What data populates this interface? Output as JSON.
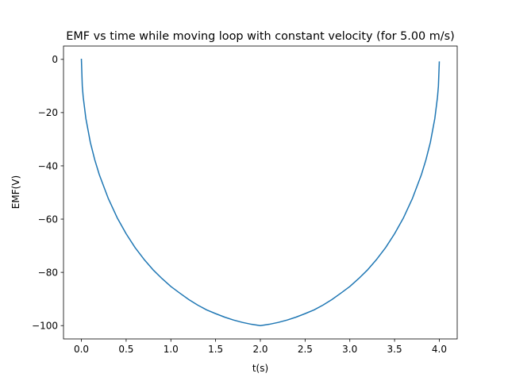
{
  "chart_data": {
    "type": "line",
    "title": "EMF vs time while moving loop with constant velocity (for 5.00 m/s)",
    "xlabel": "t(s)",
    "ylabel": "EMF(V)",
    "xlim": [
      -0.2,
      4.2
    ],
    "ylim": [
      -105,
      5
    ],
    "xticks": [
      0.0,
      0.5,
      1.0,
      1.5,
      2.0,
      2.5,
      3.0,
      3.5,
      4.0
    ],
    "xtick_labels": [
      "0.0",
      "0.5",
      "1.0",
      "1.5",
      "2.0",
      "2.5",
      "3.0",
      "3.5",
      "4.0"
    ],
    "yticks": [
      0,
      -20,
      -40,
      -60,
      -80,
      -100
    ],
    "ytick_labels": [
      "0",
      "−20",
      "−40",
      "−60",
      "−80",
      "−100"
    ],
    "grid": false,
    "series": [
      {
        "color": "#1f77b4",
        "x": [
          0.0,
          0.01,
          0.02,
          0.05,
          0.1,
          0.15,
          0.2,
          0.3,
          0.4,
          0.5,
          0.6,
          0.7,
          0.8,
          0.9,
          1.0,
          1.1,
          1.2,
          1.3,
          1.4,
          1.5,
          1.6,
          1.7,
          1.8,
          1.9,
          2.0,
          2.1,
          2.2,
          2.3,
          2.4,
          2.5,
          2.6,
          2.7,
          2.8,
          2.9,
          3.0,
          3.1,
          3.2,
          3.3,
          3.4,
          3.5,
          3.6,
          3.7,
          3.8,
          3.85,
          3.9,
          3.95,
          3.98,
          3.99,
          4.0
        ],
        "y": [
          0.0,
          -10.0,
          -14.1,
          -22.2,
          -31.2,
          -37.8,
          -43.3,
          -52.2,
          -59.5,
          -65.5,
          -70.7,
          -75.1,
          -79.0,
          -82.3,
          -85.3,
          -87.8,
          -90.2,
          -92.3,
          -94.1,
          -95.5,
          -96.8,
          -97.9,
          -98.8,
          -99.5,
          -100.0,
          -99.5,
          -98.8,
          -97.9,
          -96.8,
          -95.5,
          -94.1,
          -92.3,
          -90.2,
          -87.8,
          -85.3,
          -82.3,
          -79.0,
          -75.1,
          -70.7,
          -65.5,
          -59.5,
          -52.2,
          -43.3,
          -37.8,
          -31.2,
          -22.2,
          -14.1,
          -10.0,
          -1.0
        ]
      }
    ]
  }
}
